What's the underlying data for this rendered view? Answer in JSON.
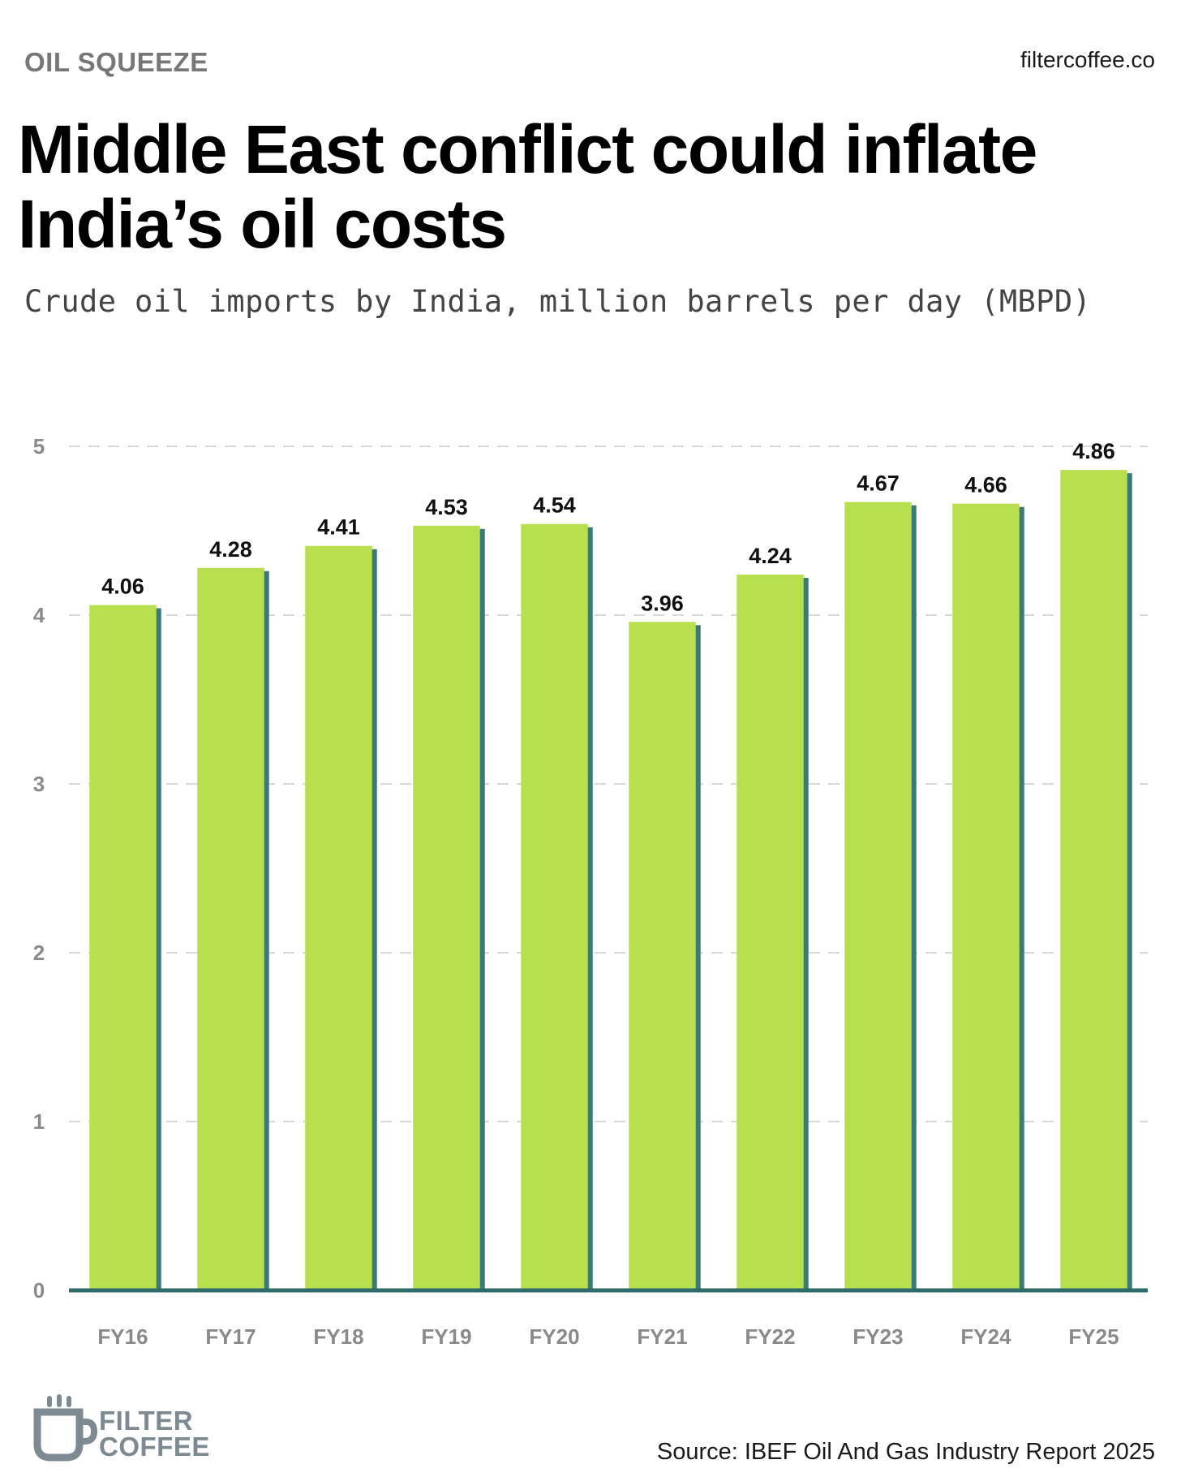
{
  "header": {
    "kicker": "OIL SQUEEZE",
    "site": "filtercoffee.co",
    "title": "Middle East conflict could inflate India’s oil costs",
    "subtitle": "Crude oil imports by India, million barrels per day (MBPD)"
  },
  "footer": {
    "source": "Source: IBEF Oil And Gas Industry Report 2025",
    "logo_line1": "FILTER",
    "logo_line2": "COFFEE"
  },
  "colors": {
    "bar": "#b8e04e",
    "bar_shadow": "#3a7a78",
    "baseline": "#2f6b6b",
    "grid": "#d9d9d9",
    "tick": "#8a8a8a",
    "label": "#111111"
  },
  "chart_data": {
    "type": "bar",
    "categories": [
      "FY16",
      "FY17",
      "FY18",
      "FY19",
      "FY20",
      "FY21",
      "FY22",
      "FY23",
      "FY24",
      "FY25"
    ],
    "values": [
      4.06,
      4.28,
      4.41,
      4.53,
      4.54,
      3.96,
      4.24,
      4.67,
      4.66,
      4.86
    ],
    "value_labels": [
      "4.06",
      "4.28",
      "4.41",
      "4.53",
      "4.54",
      "3.96",
      "4.24",
      "4.67",
      "4.66",
      "4.86"
    ],
    "yticks": [
      0,
      1,
      2,
      3,
      4,
      5
    ],
    "ylim": [
      0,
      5
    ],
    "grid": true,
    "data_labels": true
  }
}
